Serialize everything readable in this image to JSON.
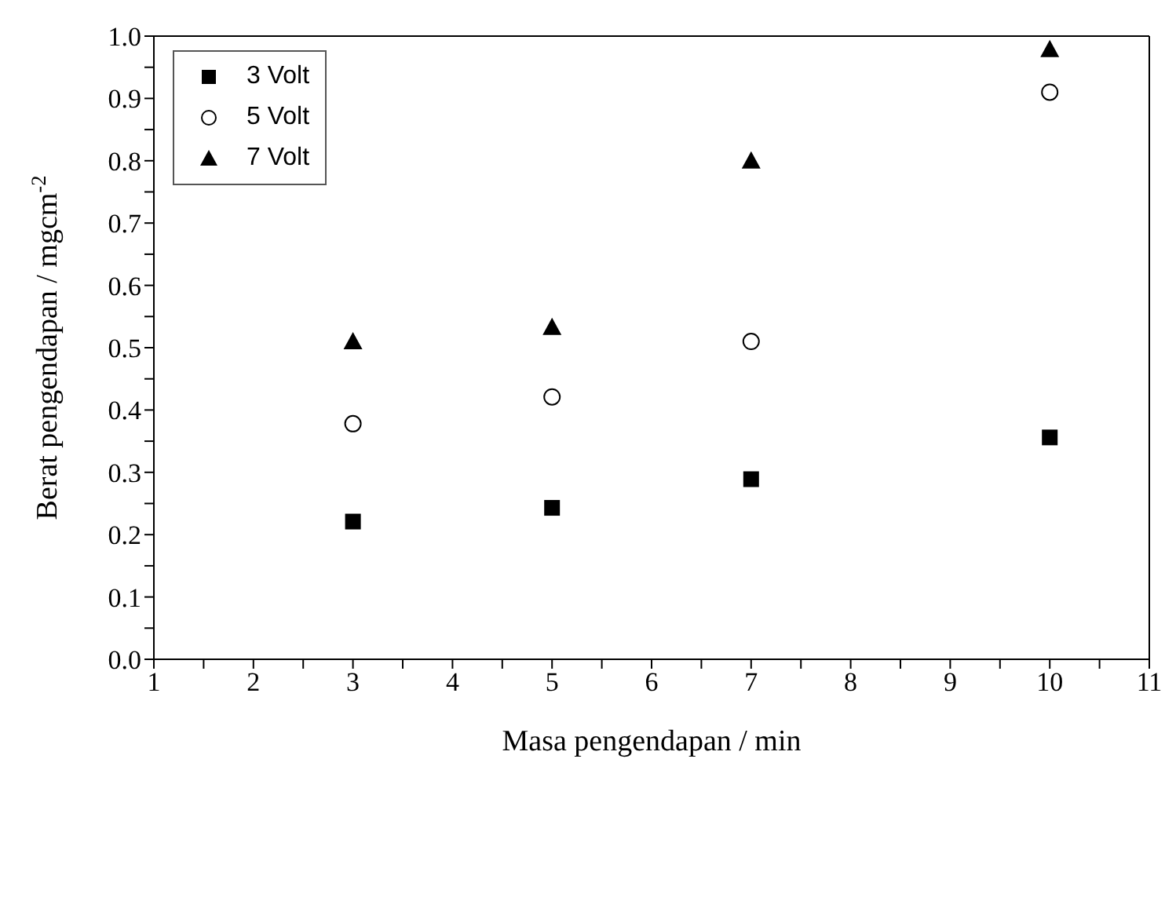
{
  "chart_data": {
    "type": "scatter",
    "xlabel": "Masa pengendapan / min",
    "ylabel": "Berat pengendapan / mgcm$^{-2}$",
    "x": [
      3,
      5,
      7,
      10
    ],
    "series": [
      {
        "name": "3 Volt",
        "color": "#000000",
        "marker": "square",
        "values": [
          0.221,
          0.243,
          0.289,
          0.356
        ]
      },
      {
        "name": "5 Volt",
        "color": "#000000",
        "marker": "circle",
        "values": [
          0.378,
          0.421,
          0.51,
          0.91
        ]
      },
      {
        "name": "7 Volt",
        "color": "#000000",
        "marker": "triangle",
        "values": [
          0.51,
          0.533,
          0.8,
          0.979
        ]
      }
    ],
    "xlim": [
      1,
      11
    ],
    "xticks": [
      1,
      {
        "value": 1.5,
        "label": null
      },
      2,
      {
        "value": 2.5,
        "label": null
      },
      3,
      {
        "value": 3.5,
        "label": null
      },
      4,
      {
        "value": 4.5,
        "label": null
      },
      5,
      {
        "value": 5.5,
        "label": null
      },
      6,
      {
        "value": 6.5,
        "label": null
      },
      7,
      {
        "value": 7.5,
        "label": null
      },
      8,
      {
        "value": 8.5,
        "label": null
      },
      9,
      {
        "value": 9.5,
        "label": null
      },
      10,
      {
        "value": 10.5,
        "label": null
      },
      11
    ],
    "ylim": [
      0,
      1
    ],
    "yticks": [
      {
        "value": 0,
        "label": "0.0"
      },
      {
        "value": 0.05,
        "label": null
      },
      0.1,
      {
        "value": 0.15,
        "label": null
      },
      0.2,
      {
        "value": 0.25,
        "label": null
      },
      0.3,
      {
        "value": 0.35,
        "label": null
      },
      0.4,
      {
        "value": 0.45,
        "label": null
      },
      0.5,
      {
        "value": 0.55,
        "label": null
      },
      0.6,
      {
        "value": 0.65,
        "label": null
      },
      0.7,
      {
        "value": 0.75,
        "label": null
      },
      0.8,
      {
        "value": 0.85,
        "label": null
      },
      0.9,
      {
        "value": 0.95,
        "label": null
      },
      {
        "value": 1,
        "label": "1.0"
      }
    ],
    "legend": "top left"
  }
}
